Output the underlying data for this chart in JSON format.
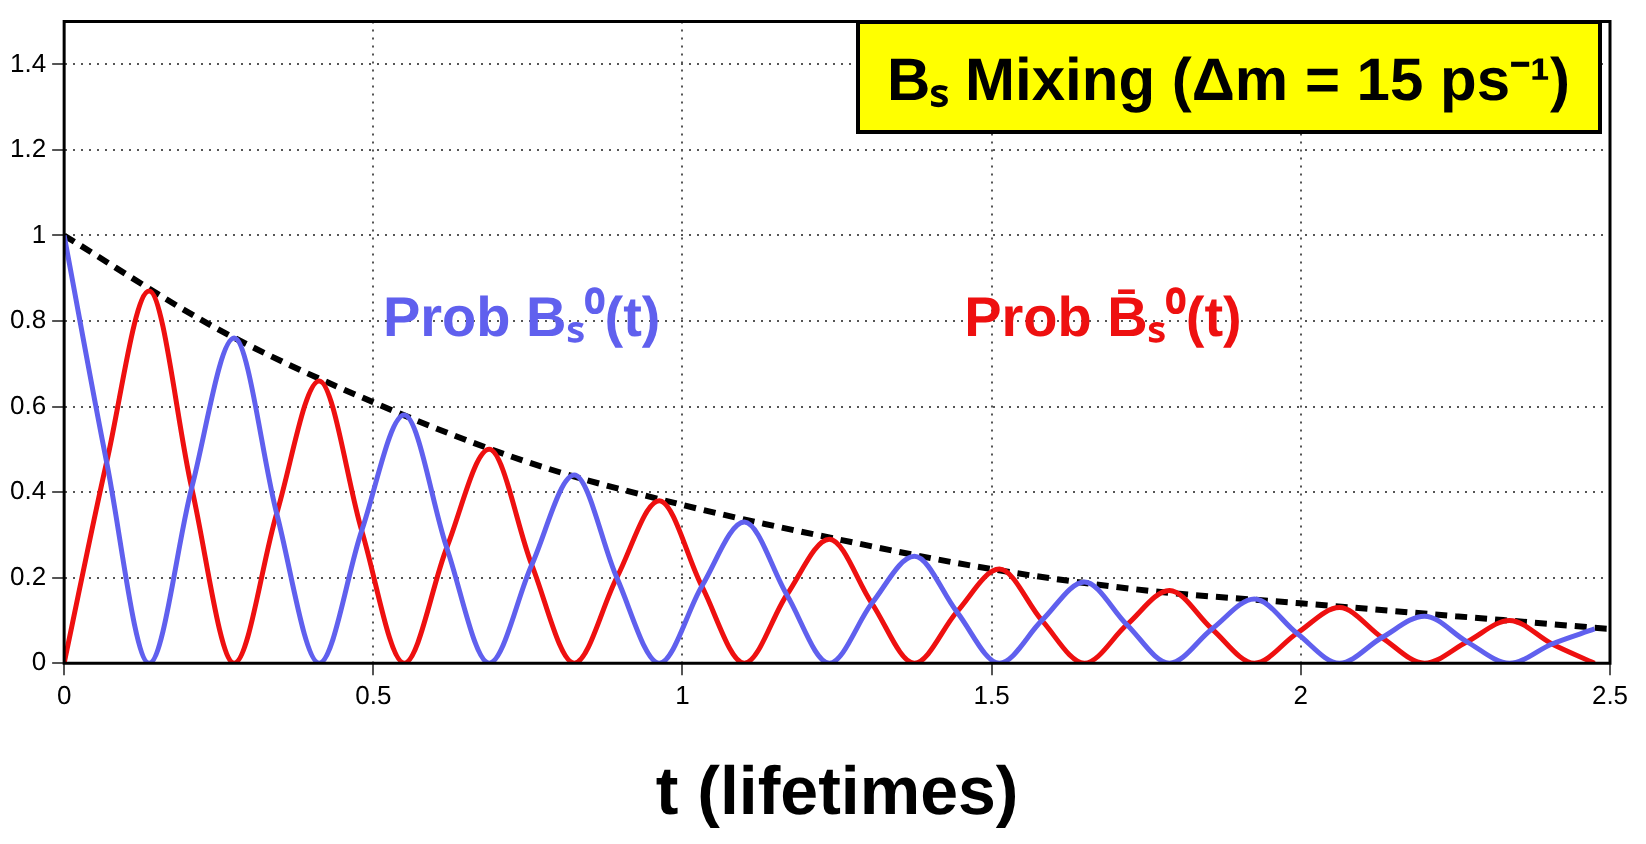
{
  "chart_data": {
    "type": "line",
    "title": "Bₛ Mixing (Δm = 15 ps⁻¹)",
    "xlabel": "t (lifetimes)",
    "xlim": [
      0,
      2.5
    ],
    "xticks": [
      0,
      0.5,
      1,
      1.5,
      2,
      2.5
    ],
    "ylim": [
      0,
      1.5
    ],
    "yticks": [
      0,
      0.2,
      0.4,
      0.6,
      0.8,
      1,
      1.2,
      1.4
    ],
    "grid": true,
    "legend": false,
    "marker": "none",
    "series": [
      {
        "name": "Prob Bₛ⁰(t)",
        "color": "#6060ee",
        "x": [
          0,
          0.06875,
          0.1375,
          0.20625,
          0.275,
          0.34375,
          0.4125,
          0.48125,
          0.55,
          0.61875,
          0.6875,
          0.75625,
          0.825,
          0.89375,
          0.9625,
          1.03125,
          1.1,
          1.16875,
          1.2375,
          1.30625,
          1.375,
          1.44375,
          1.5125,
          1.58125,
          1.65,
          1.71875,
          1.7875,
          1.85625,
          1.925,
          1.99375,
          2.0625,
          2.13125,
          2.2,
          2.26875,
          2.3375,
          2.40625,
          2.475
        ],
        "values": [
          1,
          0.47,
          0,
          0.41,
          0.76,
          0.35,
          0,
          0.31,
          0.58,
          0.27,
          0,
          0.23,
          0.44,
          0.2,
          0,
          0.18,
          0.33,
          0.16,
          0,
          0.14,
          0.25,
          0.12,
          0,
          0.1,
          0.19,
          0.09,
          0,
          0.08,
          0.15,
          0.07,
          0,
          0.06,
          0.11,
          0.05,
          0,
          0.045,
          0.08
        ]
      },
      {
        "name": "Prob B̄ₛ⁰(t)",
        "color": "#ee1010",
        "x": [
          0,
          0.06875,
          0.1375,
          0.20625,
          0.275,
          0.34375,
          0.4125,
          0.48125,
          0.55,
          0.61875,
          0.6875,
          0.75625,
          0.825,
          0.89375,
          0.9625,
          1.03125,
          1.1,
          1.16875,
          1.2375,
          1.30625,
          1.375,
          1.44375,
          1.5125,
          1.58125,
          1.65,
          1.71875,
          1.7875,
          1.85625,
          1.925,
          1.99375,
          2.0625,
          2.13125,
          2.2,
          2.26875,
          2.3375,
          2.40625,
          2.475
        ],
        "values": [
          0,
          0.47,
          0.87,
          0.41,
          0,
          0.35,
          0.66,
          0.31,
          0,
          0.27,
          0.5,
          0.23,
          0,
          0.2,
          0.38,
          0.18,
          0,
          0.16,
          0.29,
          0.14,
          0,
          0.12,
          0.22,
          0.1,
          0,
          0.09,
          0.17,
          0.08,
          0,
          0.07,
          0.13,
          0.06,
          0,
          0.05,
          0.1,
          0.045,
          0
        ]
      },
      {
        "color": "#000000",
        "line_style": "dashed",
        "x": [
          0,
          0.25,
          0.5,
          0.75,
          1,
          1.25,
          1.5,
          1.75,
          2,
          2.25,
          2.5
        ],
        "values": [
          1,
          0.78,
          0.61,
          0.47,
          0.37,
          0.29,
          0.22,
          0.17,
          0.14,
          0.11,
          0.08
        ]
      }
    ]
  }
}
